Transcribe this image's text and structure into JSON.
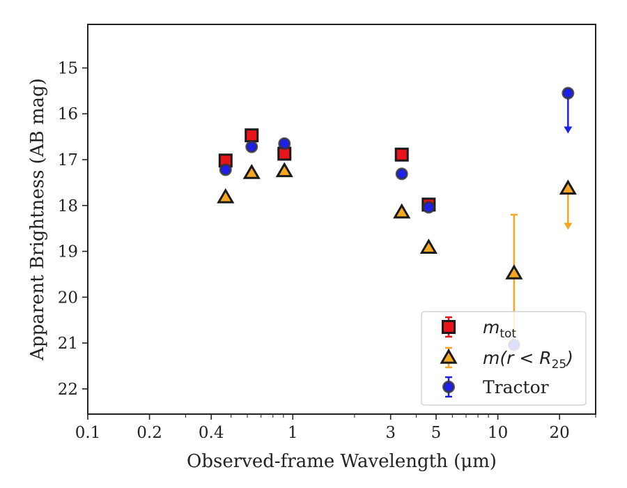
{
  "chart_data": {
    "type": "scatter",
    "xlabel": "Observed-frame Wavelength (μm)",
    "ylabel": "Apparent Brightness (AB mag)",
    "xscale": "log",
    "xlim": [
      0.1,
      30
    ],
    "ylim": [
      22.55,
      14.05
    ],
    "y_inverted": true,
    "x_ticks": [
      {
        "value": 0.1,
        "label": "0.1"
      },
      {
        "value": 0.2,
        "label": "0.2"
      },
      {
        "value": 0.4,
        "label": "0.4"
      },
      {
        "value": 1,
        "label": "1"
      },
      {
        "value": 3,
        "label": "3"
      },
      {
        "value": 5,
        "label": "5"
      },
      {
        "value": 10,
        "label": "10"
      },
      {
        "value": 20,
        "label": "20"
      }
    ],
    "y_ticks": [
      15,
      16,
      17,
      18,
      19,
      20,
      21,
      22
    ],
    "legend_position": "lower right",
    "series": [
      {
        "name": "m_tot",
        "legend_main": "m",
        "legend_sub": "tot",
        "marker": "square",
        "color": "#e8141a",
        "points": [
          {
            "x": 0.47,
            "y": 17.02
          },
          {
            "x": 0.63,
            "y": 16.47
          },
          {
            "x": 0.91,
            "y": 16.87
          },
          {
            "x": 3.4,
            "y": 16.89
          },
          {
            "x": 4.6,
            "y": 17.98
          }
        ]
      },
      {
        "name": "m(r < R25)",
        "legend_main": "m(r < R",
        "legend_sub": "25",
        "legend_tail": ")",
        "marker": "triangle",
        "color": "#f5a623",
        "points": [
          {
            "x": 0.47,
            "y": 17.82
          },
          {
            "x": 0.63,
            "y": 17.29
          },
          {
            "x": 0.91,
            "y": 17.25
          },
          {
            "x": 3.4,
            "y": 18.15
          },
          {
            "x": 4.6,
            "y": 18.92
          },
          {
            "x": 12.0,
            "y": 19.48,
            "err_low": 18.2,
            "err_high": 21.0
          },
          {
            "x": 22.0,
            "y": 17.63,
            "upper_limit_to": 18.5
          }
        ]
      },
      {
        "name": "Tractor",
        "legend_main": "Tractor",
        "marker": "circle",
        "color": "#1f1fe8",
        "points": [
          {
            "x": 0.47,
            "y": 17.22
          },
          {
            "x": 0.63,
            "y": 16.72
          },
          {
            "x": 0.91,
            "y": 16.65
          },
          {
            "x": 3.4,
            "y": 17.31
          },
          {
            "x": 4.6,
            "y": 18.04
          },
          {
            "x": 12.0,
            "y": 21.04
          },
          {
            "x": 22.0,
            "y": 15.55,
            "upper_limit_to": 16.4
          }
        ]
      }
    ]
  }
}
